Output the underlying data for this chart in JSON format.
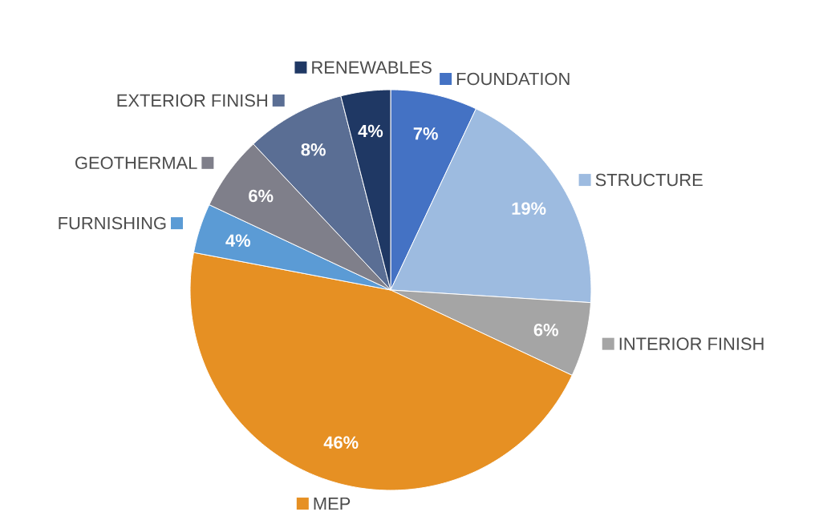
{
  "chart_data": {
    "type": "pie",
    "legend": "right",
    "categories": [
      "FOUNDATION",
      "STRUCTURE",
      "INTERIOR FINISH",
      "MEP",
      "FURNISHING",
      "GEOTHERMAL",
      "EXTERIOR FINISH",
      "RENEWABLES"
    ],
    "values": [
      7,
      19,
      6,
      46,
      4,
      6,
      8,
      4
    ],
    "colors": [
      "#4472c4",
      "#9dbbe0",
      "#a5a5a5",
      "#e69023",
      "#5b9bd5",
      "#7f7f8a",
      "#5a6e94",
      "#1f3864"
    ],
    "value_labels": [
      "7%",
      "19%",
      "6%",
      "46%",
      "4%",
      "6%",
      "8%",
      "4%"
    ]
  }
}
